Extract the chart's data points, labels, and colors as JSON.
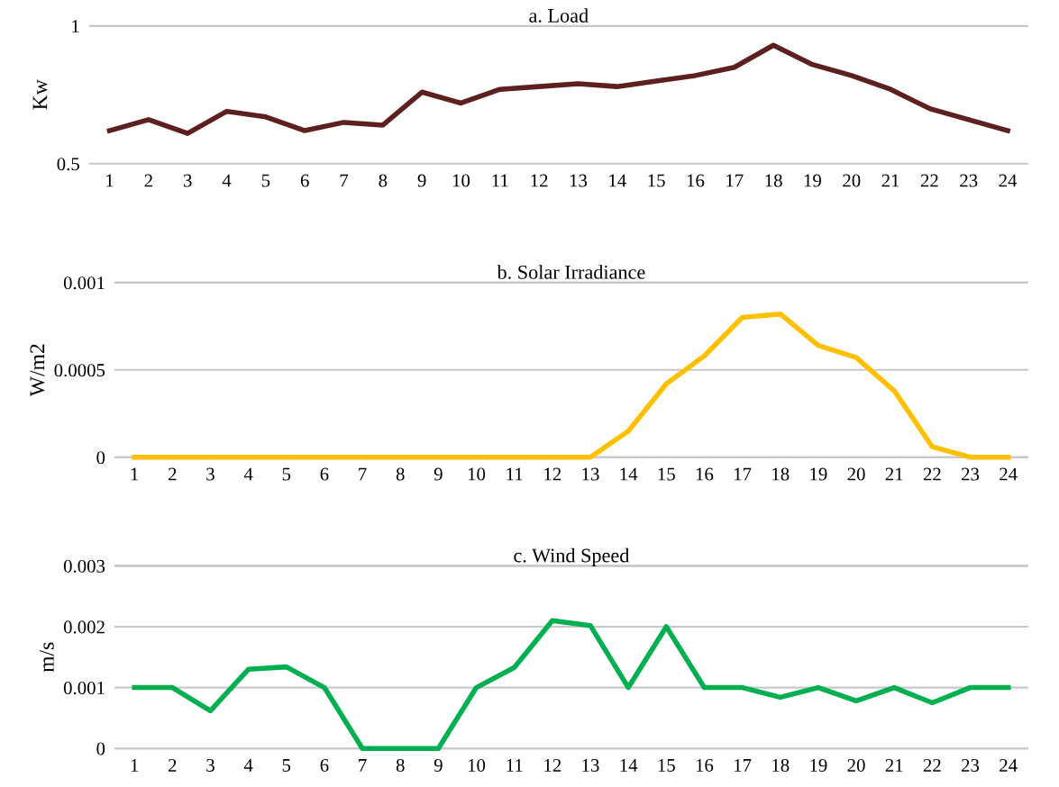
{
  "chart_data": [
    {
      "type": "line",
      "title": "a. Load",
      "ylabel": "Kw",
      "categories": [
        "1",
        "2",
        "3",
        "4",
        "5",
        "6",
        "7",
        "8",
        "9",
        "10",
        "11",
        "12",
        "13",
        "14",
        "15",
        "16",
        "17",
        "18",
        "19",
        "20",
        "21",
        "22",
        "23",
        "24"
      ],
      "ylim": [
        0.5,
        1
      ],
      "yticks": [
        0.5,
        1
      ],
      "legend": false,
      "series": [
        {
          "color": "#5e1f1f",
          "values": [
            0.62,
            0.66,
            0.61,
            0.69,
            0.67,
            0.62,
            0.65,
            0.64,
            0.76,
            0.72,
            0.77,
            0.78,
            0.79,
            0.78,
            0.8,
            0.82,
            0.85,
            0.93,
            0.86,
            0.82,
            0.77,
            0.7,
            0.66,
            0.62
          ]
        }
      ]
    },
    {
      "type": "line",
      "title": "b. Solar Irradiance",
      "ylabel": "W/m2",
      "categories": [
        "1",
        "2",
        "3",
        "4",
        "5",
        "6",
        "7",
        "8",
        "9",
        "10",
        "11",
        "12",
        "13",
        "14",
        "15",
        "16",
        "17",
        "18",
        "19",
        "20",
        "21",
        "22",
        "23",
        "24"
      ],
      "ylim": [
        0,
        0.001
      ],
      "yticks": [
        0,
        0.0005,
        0.001
      ],
      "grid": "y",
      "legend": false,
      "series": [
        {
          "color": "#ffc000",
          "values": [
            0,
            0,
            0,
            0,
            0,
            0,
            0,
            0,
            0,
            0,
            0,
            0,
            0,
            0.00015,
            0.00042,
            0.00058,
            0.0008,
            0.00082,
            0.00064,
            0.00057,
            0.00038,
            6e-05,
            0,
            0
          ]
        }
      ]
    },
    {
      "type": "line",
      "title": "c. Wind Speed",
      "ylabel": "m/s",
      "categories": [
        "1",
        "2",
        "3",
        "4",
        "5",
        "6",
        "7",
        "8",
        "9",
        "10",
        "11",
        "12",
        "13",
        "14",
        "15",
        "16",
        "17",
        "18",
        "19",
        "20",
        "21",
        "22",
        "23",
        "24"
      ],
      "ylim": [
        0,
        0.003
      ],
      "yticks": [
        0,
        0.001,
        0.002,
        0.003
      ],
      "grid": "y",
      "legend": false,
      "series": [
        {
          "color": "#00b050",
          "values": [
            0.001,
            0.001,
            0.00062,
            0.0013,
            0.00134,
            0.001,
            0,
            0,
            0,
            0.001,
            0.00133,
            0.0021,
            0.00202,
            0.001,
            0.002,
            0.001,
            0.001,
            0.00084,
            0.001,
            0.00078,
            0.001,
            0.00075,
            0.001,
            0.001
          ]
        }
      ]
    }
  ]
}
